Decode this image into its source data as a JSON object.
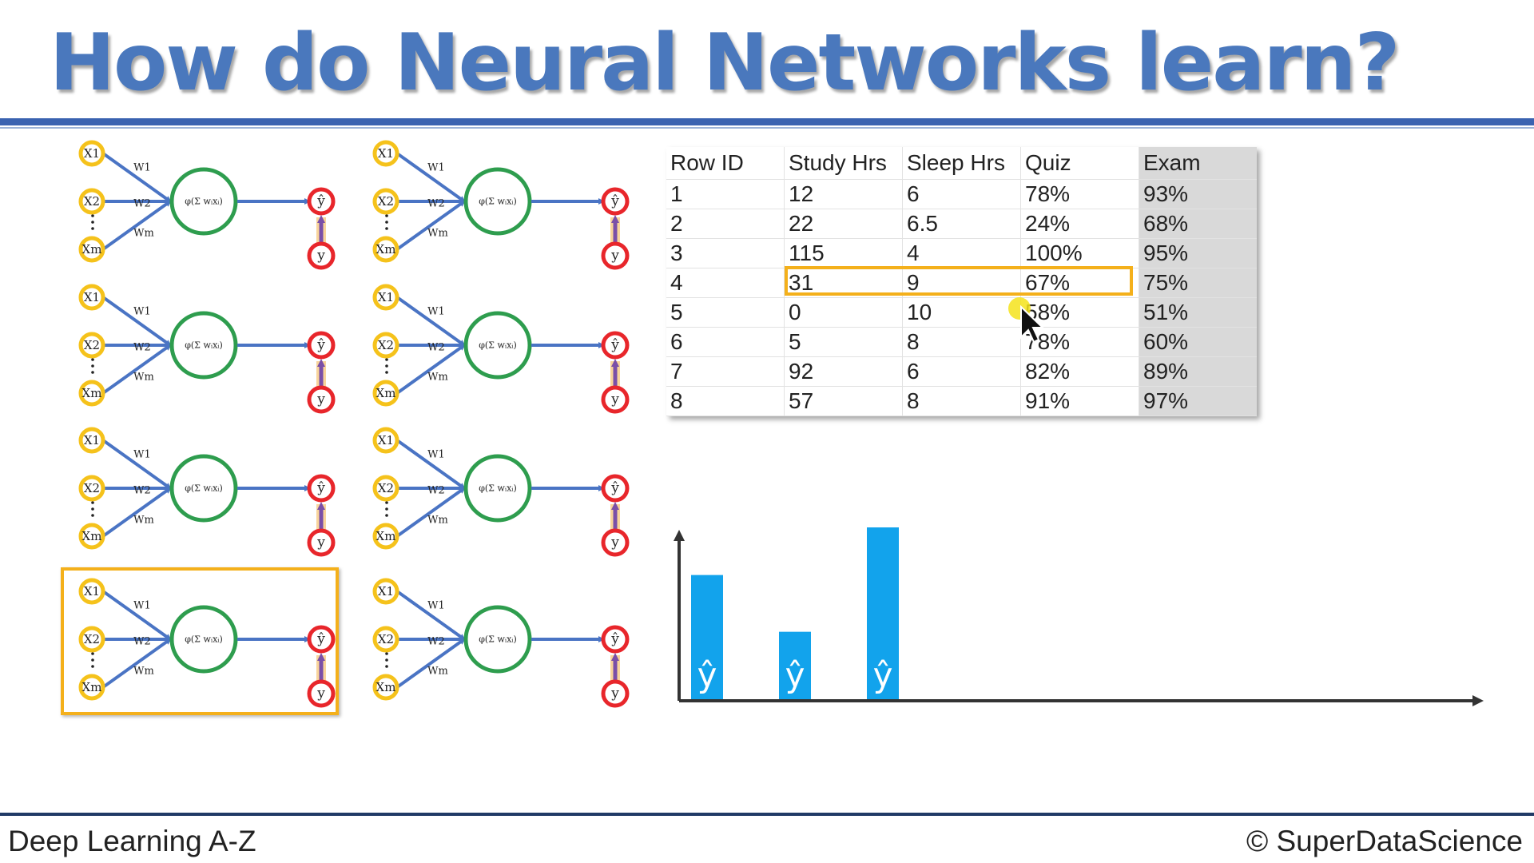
{
  "title": "How do Neural Networks learn?",
  "footer": {
    "left": "Deep Learning A-Z",
    "right": "© SuperDataScience"
  },
  "network_labels": {
    "x1": "X1",
    "x2": "X2",
    "xm": "Xm",
    "w1": "W1",
    "w2": "W2",
    "wm": "Wm",
    "yhat": "ŷ",
    "y": "y",
    "formula": "φ(Σ wᵢxᵢ)"
  },
  "table": {
    "headers": [
      "Row ID",
      "Study Hrs",
      "Sleep Hrs",
      "Quiz",
      "Exam"
    ],
    "rows": [
      [
        "1",
        "12",
        "6",
        "78%",
        "93%"
      ],
      [
        "2",
        "22",
        "6.5",
        "24%",
        "68%"
      ],
      [
        "3",
        "115",
        "4",
        "100%",
        "95%"
      ],
      [
        "4",
        "31",
        "9",
        "67%",
        "75%"
      ],
      [
        "5",
        "0",
        "10",
        "58%",
        "51%"
      ],
      [
        "6",
        "5",
        "8",
        "78%",
        "60%"
      ],
      [
        "7",
        "92",
        "6",
        "82%",
        "89%"
      ],
      [
        "8",
        "57",
        "8",
        "91%",
        "97%"
      ]
    ]
  },
  "highlighted_row_index": 3,
  "highlighted_network_index": 6,
  "colors": {
    "title": "#4a78bd",
    "highlight": "#f4b01b",
    "neuron": "#2e9d4e",
    "output": "#e8262b",
    "input": "#f5c21b",
    "arrow": "#4a74c4",
    "bar": "#12a3ec"
  },
  "bar_chart": {
    "bar_label": "ŷ",
    "values": [
      0.7,
      0.38,
      1.0
    ]
  }
}
